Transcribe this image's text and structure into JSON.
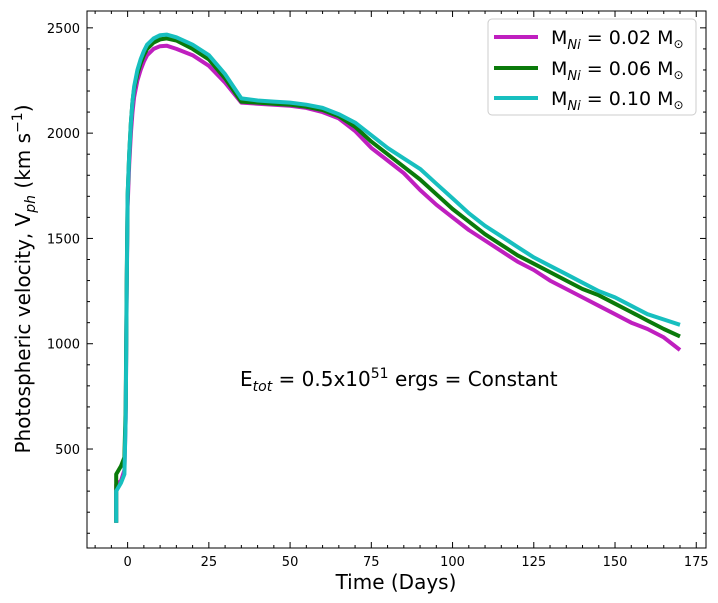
{
  "chart_data": {
    "type": "line",
    "xlabel": "Time (Days)",
    "ylabel": "Photospheric velocity, V_ph (km s^-1)",
    "xlim": [
      -12.5,
      178
    ],
    "ylim": [
      30,
      2580
    ],
    "xticks": [
      0,
      25,
      50,
      75,
      100,
      125,
      150,
      175
    ],
    "yticks": [
      500,
      1000,
      1500,
      2000,
      2500
    ],
    "annotation": "E_tot = 0.5x10^51 ergs = Constant",
    "legend_position": "top-right",
    "series": [
      {
        "name": "M_Ni = 0.02 M_sun",
        "color": "#bf1fbf",
        "points": [
          [
            -3.5,
            150
          ],
          [
            -3.5,
            330
          ],
          [
            -2,
            350
          ],
          [
            -1,
            400
          ],
          [
            -0.6,
            650
          ],
          [
            -0.3,
            1200
          ],
          [
            0,
            1650
          ],
          [
            0.5,
            1850
          ],
          [
            1,
            2000
          ],
          [
            1.5,
            2100
          ],
          [
            2,
            2170
          ],
          [
            3,
            2250
          ],
          [
            4,
            2300
          ],
          [
            5,
            2340
          ],
          [
            6,
            2370
          ],
          [
            8,
            2400
          ],
          [
            10,
            2413
          ],
          [
            12,
            2415
          ],
          [
            15,
            2400
          ],
          [
            20,
            2370
          ],
          [
            25,
            2320
          ],
          [
            30,
            2240
          ],
          [
            35,
            2145
          ],
          [
            40,
            2140
          ],
          [
            45,
            2135
          ],
          [
            50,
            2130
          ],
          [
            55,
            2120
          ],
          [
            60,
            2100
          ],
          [
            65,
            2070
          ],
          [
            70,
            2010
          ],
          [
            75,
            1930
          ],
          [
            80,
            1870
          ],
          [
            85,
            1810
          ],
          [
            90,
            1730
          ],
          [
            95,
            1660
          ],
          [
            100,
            1600
          ],
          [
            105,
            1540
          ],
          [
            110,
            1490
          ],
          [
            115,
            1440
          ],
          [
            120,
            1390
          ],
          [
            125,
            1350
          ],
          [
            130,
            1300
          ],
          [
            135,
            1260
          ],
          [
            140,
            1220
          ],
          [
            145,
            1180
          ],
          [
            150,
            1140
          ],
          [
            155,
            1100
          ],
          [
            160,
            1070
          ],
          [
            165,
            1030
          ],
          [
            170,
            970
          ]
        ]
      },
      {
        "name": "M_Ni = 0.06 M_sun",
        "color": "#0a7a0a",
        "points": [
          [
            -3.5,
            150
          ],
          [
            -3.5,
            380
          ],
          [
            -2,
            420
          ],
          [
            -1,
            460
          ],
          [
            -0.6,
            700
          ],
          [
            -0.3,
            1250
          ],
          [
            0,
            1700
          ],
          [
            0.5,
            1900
          ],
          [
            1,
            2050
          ],
          [
            1.5,
            2150
          ],
          [
            2,
            2210
          ],
          [
            3,
            2280
          ],
          [
            4,
            2330
          ],
          [
            5,
            2370
          ],
          [
            6,
            2400
          ],
          [
            8,
            2430
          ],
          [
            10,
            2445
          ],
          [
            12,
            2450
          ],
          [
            15,
            2440
          ],
          [
            20,
            2400
          ],
          [
            25,
            2350
          ],
          [
            30,
            2260
          ],
          [
            35,
            2150
          ],
          [
            40,
            2145
          ],
          [
            45,
            2140
          ],
          [
            50,
            2135
          ],
          [
            55,
            2125
          ],
          [
            60,
            2110
          ],
          [
            65,
            2080
          ],
          [
            70,
            2030
          ],
          [
            75,
            1960
          ],
          [
            80,
            1900
          ],
          [
            85,
            1840
          ],
          [
            90,
            1780
          ],
          [
            95,
            1710
          ],
          [
            100,
            1640
          ],
          [
            105,
            1580
          ],
          [
            110,
            1520
          ],
          [
            115,
            1470
          ],
          [
            120,
            1420
          ],
          [
            125,
            1380
          ],
          [
            130,
            1340
          ],
          [
            135,
            1300
          ],
          [
            140,
            1260
          ],
          [
            145,
            1230
          ],
          [
            150,
            1190
          ],
          [
            155,
            1150
          ],
          [
            160,
            1110
          ],
          [
            165,
            1070
          ],
          [
            170,
            1035
          ]
        ]
      },
      {
        "name": "M_Ni = 0.10 M_sun",
        "color": "#17bfbf",
        "points": [
          [
            -3.5,
            150
          ],
          [
            -3.5,
            300
          ],
          [
            -2,
            340
          ],
          [
            -1,
            380
          ],
          [
            -0.6,
            650
          ],
          [
            -0.3,
            1200
          ],
          [
            0,
            1700
          ],
          [
            0.5,
            1900
          ],
          [
            1,
            2050
          ],
          [
            1.5,
            2150
          ],
          [
            2,
            2220
          ],
          [
            3,
            2300
          ],
          [
            4,
            2350
          ],
          [
            5,
            2390
          ],
          [
            6,
            2420
          ],
          [
            8,
            2450
          ],
          [
            10,
            2465
          ],
          [
            12,
            2468
          ],
          [
            15,
            2455
          ],
          [
            20,
            2420
          ],
          [
            25,
            2370
          ],
          [
            30,
            2280
          ],
          [
            35,
            2165
          ],
          [
            40,
            2155
          ],
          [
            45,
            2150
          ],
          [
            50,
            2145
          ],
          [
            55,
            2135
          ],
          [
            60,
            2120
          ],
          [
            65,
            2090
          ],
          [
            70,
            2050
          ],
          [
            75,
            1990
          ],
          [
            80,
            1930
          ],
          [
            85,
            1880
          ],
          [
            90,
            1830
          ],
          [
            95,
            1760
          ],
          [
            100,
            1690
          ],
          [
            105,
            1620
          ],
          [
            110,
            1560
          ],
          [
            115,
            1510
          ],
          [
            120,
            1460
          ],
          [
            125,
            1410
          ],
          [
            130,
            1370
          ],
          [
            135,
            1330
          ],
          [
            140,
            1290
          ],
          [
            145,
            1250
          ],
          [
            150,
            1220
          ],
          [
            155,
            1180
          ],
          [
            160,
            1140
          ],
          [
            165,
            1115
          ],
          [
            170,
            1090
          ]
        ]
      }
    ]
  }
}
